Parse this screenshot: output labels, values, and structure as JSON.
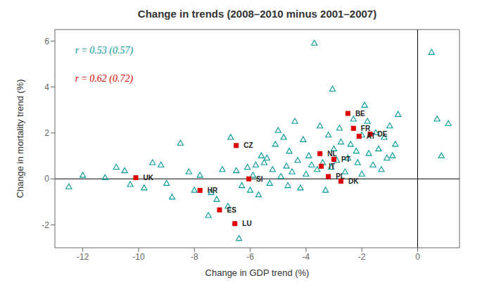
{
  "chart_data": {
    "type": "scatter",
    "title": "Change in trends (2008–2010 minus 2001–2007)",
    "x_label": "Change in GDP trend (%)",
    "y_label": "Change in mortality trend (%)",
    "xlim": [
      -13.0,
      1.5
    ],
    "ylim": [
      -3.0,
      6.5
    ],
    "xticks": [
      -12,
      -10,
      -8,
      -6,
      -4,
      -2,
      0
    ],
    "yticks": [
      -2,
      0,
      2,
      4,
      6
    ],
    "grid": false,
    "reference_lines": [
      {
        "axis": "x",
        "value": 0
      },
      {
        "axis": "y",
        "value": 0
      }
    ],
    "annotations": [
      {
        "text": "r = 0.53 (0.57)",
        "color": "#009999"
      },
      {
        "text": "r = 0.62 (0.72)",
        "color": "#dd0000"
      }
    ],
    "series": [
      {
        "color": "#009999",
        "marker": "triangle-open",
        "x": [
          -12.5,
          -12.0,
          -11.2,
          -10.8,
          -10.5,
          -10.3,
          -9.8,
          -9.5,
          -9.2,
          -9.0,
          -8.8,
          -8.5,
          -8.2,
          -8.0,
          -7.8,
          -7.5,
          -7.4,
          -7.2,
          -7.0,
          -6.8,
          -6.7,
          -6.5,
          -6.4,
          -6.3,
          -6.1,
          -6.0,
          -5.9,
          -5.8,
          -5.7,
          -5.6,
          -5.5,
          -5.4,
          -5.3,
          -5.2,
          -5.1,
          -5.0,
          -4.9,
          -4.8,
          -4.7,
          -4.65,
          -4.6,
          -4.5,
          -4.4,
          -4.3,
          -4.2,
          -4.1,
          -4.0,
          -3.9,
          -3.8,
          -3.7,
          -3.6,
          -3.5,
          -3.4,
          -3.3,
          -3.2,
          -3.1,
          -3.05,
          -3.0,
          -2.9,
          -2.8,
          -2.75,
          -2.6,
          -2.5,
          -2.4,
          -2.3,
          -2.2,
          -2.15,
          -2.0,
          -2.0,
          -1.9,
          -1.8,
          -1.75,
          -1.6,
          -1.5,
          -1.4,
          -1.3,
          -1.2,
          -1.1,
          -1.0,
          -0.9,
          -0.8,
          -0.7,
          0.5,
          0.7,
          0.85,
          1.1
        ],
        "values": [
          -0.35,
          0.15,
          0.05,
          0.5,
          0.35,
          -0.25,
          -0.4,
          0.7,
          0.6,
          -0.2,
          -0.8,
          1.55,
          0.3,
          -0.5,
          0.15,
          -1.6,
          -0.6,
          -0.9,
          0.4,
          -1.2,
          1.8,
          0.35,
          -2.6,
          -0.3,
          0.5,
          -0.5,
          0.15,
          0.6,
          -0.7,
          1.0,
          0.7,
          0.9,
          -0.2,
          0.4,
          1.5,
          2.1,
          0.1,
          1.8,
          0.55,
          -0.3,
          1.2,
          0.3,
          2.5,
          0.8,
          -0.4,
          1.7,
          0.2,
          1.0,
          0.6,
          5.9,
          0.4,
          2.3,
          0.7,
          -0.5,
          1.9,
          0.5,
          3.9,
          1.3,
          0.8,
          2.2,
          1.6,
          0.3,
          0.9,
          1.5,
          2.6,
          1.2,
          0.7,
          0.2,
          1.9,
          3.2,
          2.5,
          1.1,
          0.6,
          2.0,
          1.3,
          0.4,
          1.8,
          0.9,
          2.3,
          1.0,
          1.5,
          2.8,
          5.5,
          2.6,
          1.0,
          2.4
        ]
      },
      {
        "color": "#dd0000",
        "marker": "square",
        "x": [
          -10.1,
          -7.8,
          -7.1,
          -6.55,
          -6.5,
          -6.05,
          -3.5,
          -3.45,
          -3.2,
          -3.0,
          -2.75,
          -2.5,
          -2.3,
          -2.1,
          -1.7
        ],
        "values": [
          0.05,
          -0.5,
          -1.35,
          -1.95,
          1.45,
          0.0,
          1.1,
          0.55,
          0.1,
          0.85,
          -0.1,
          2.85,
          2.2,
          1.85,
          1.95
        ],
        "labels": [
          "UK",
          "HR",
          "ES",
          "LU",
          "CZ",
          "SI",
          "NL",
          "IT",
          "PL",
          "PT",
          "DK",
          "BE",
          "FR",
          "AT",
          "DE"
        ]
      }
    ]
  }
}
